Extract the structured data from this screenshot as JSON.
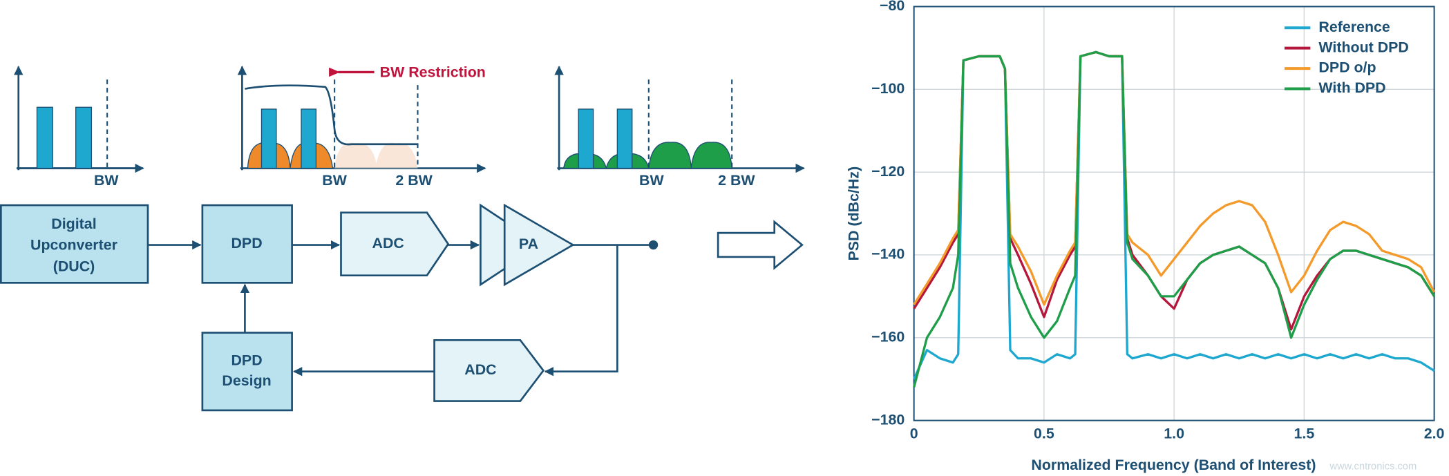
{
  "diagram": {
    "spectra": [
      {
        "labels": [
          "BW"
        ]
      },
      {
        "labels": [
          "BW",
          "2 BW"
        ],
        "annotation": "BW Restriction"
      },
      {
        "labels": [
          "BW",
          "2 BW"
        ]
      }
    ],
    "blocks": {
      "duc": [
        "Digital",
        "Upconverter",
        "(DUC)"
      ],
      "dpd": [
        "DPD"
      ],
      "adc": [
        "ADC"
      ],
      "pa": [
        "PA"
      ],
      "design": [
        "DPD",
        "Design"
      ],
      "adc_feedback": [
        "ADC"
      ]
    },
    "watermark": "www.cntronics.com"
  },
  "chart_data": {
    "type": "line",
    "xlabel": "Normalized Frequency (Band of Interest)",
    "ylabel": "PSD (dBc/Hz)",
    "xlim": [
      0,
      2
    ],
    "xticks": [
      0,
      0.5,
      {
        "value": 1,
        "label": "1.0"
      },
      1.5,
      {
        "value": 2,
        "label": "2.0"
      }
    ],
    "ylim": [
      -180,
      -80
    ],
    "yticks": [
      -80,
      -100,
      -120,
      -140,
      -160,
      -180
    ],
    "grid": true,
    "legend": "upper right",
    "x": [
      0,
      0.05,
      0.1,
      0.15,
      0.17,
      0.19,
      0.25,
      0.3,
      0.33,
      0.35,
      0.37,
      0.4,
      0.45,
      0.5,
      0.55,
      0.6,
      0.62,
      0.64,
      0.7,
      0.75,
      0.8,
      0.82,
      0.84,
      0.9,
      0.95,
      1.0,
      1.05,
      1.1,
      1.15,
      1.2,
      1.25,
      1.3,
      1.35,
      1.4,
      1.45,
      1.5,
      1.55,
      1.6,
      1.65,
      1.7,
      1.75,
      1.8,
      1.85,
      1.9,
      1.95,
      2.0
    ],
    "series": [
      {
        "name": "Reference",
        "color": "#1ea8d0",
        "values": [
          -170,
          -163,
          -165,
          -166,
          -164,
          -93,
          -92,
          -92,
          -92,
          -95,
          -163,
          -165,
          -165,
          -166,
          -164,
          -165,
          -164,
          -92,
          -91,
          -92,
          -92,
          -164,
          -165,
          -164,
          -165,
          -164,
          -165,
          -164,
          -165,
          -164,
          -165,
          -164,
          -165,
          -164,
          -165,
          -164,
          -165,
          -164,
          -165,
          -164,
          -165,
          -164,
          -165,
          -165,
          -166,
          -168
        ]
      },
      {
        "name": "Without DPD",
        "color": "#b5173c",
        "values": [
          -153,
          -148,
          -143,
          -137,
          -135,
          -93,
          -92,
          -92,
          -92,
          -95,
          -136,
          -140,
          -147,
          -155,
          -146,
          -140,
          -138,
          -92,
          -91,
          -92,
          -92,
          -136,
          -140,
          -145,
          -150,
          -153,
          -146,
          -142,
          -140,
          -139,
          -138,
          -140,
          -142,
          -148,
          -158,
          -150,
          -145,
          -141,
          -139,
          -139,
          -140,
          -141,
          -142,
          -143,
          -145,
          -150
        ]
      },
      {
        "name": "DPD o/p",
        "color": "#f39a2b",
        "values": [
          -152,
          -147,
          -142,
          -136,
          -134,
          -93,
          -92,
          -92,
          -92,
          -95,
          -135,
          -138,
          -144,
          -152,
          -145,
          -139,
          -137,
          -92,
          -91,
          -92,
          -92,
          -135,
          -137,
          -140,
          -145,
          -141,
          -137,
          -133,
          -130,
          -128,
          -127,
          -128,
          -132,
          -140,
          -149,
          -145,
          -139,
          -134,
          -132,
          -133,
          -135,
          -139,
          -140,
          -141,
          -143,
          -149
        ]
      },
      {
        "name": "With DPD",
        "color": "#1f9e4a",
        "values": [
          -172,
          -160,
          -155,
          -148,
          -140,
          -93,
          -92,
          -92,
          -92,
          -95,
          -142,
          -148,
          -155,
          -160,
          -156,
          -148,
          -145,
          -92,
          -91,
          -92,
          -92,
          -137,
          -141,
          -145,
          -150,
          -150,
          -146,
          -142,
          -140,
          -139,
          -138,
          -140,
          -142,
          -148,
          -160,
          -152,
          -146,
          -141,
          -139,
          -139,
          -140,
          -141,
          -142,
          -143,
          -145,
          -150
        ]
      }
    ]
  }
}
